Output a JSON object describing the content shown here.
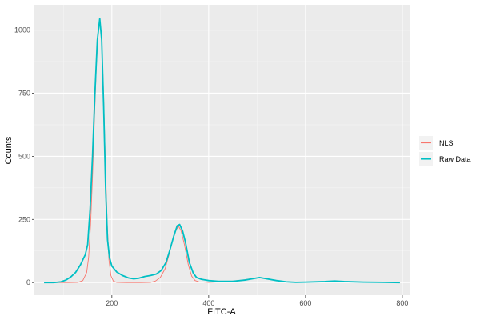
{
  "chart_data": {
    "type": "line",
    "title": "",
    "xlabel": "FITC-A",
    "ylabel": "Counts",
    "xlim": [
      40,
      815
    ],
    "ylim": [
      -50,
      1100
    ],
    "x_ticks": [
      200,
      400,
      600,
      800
    ],
    "y_ticks": [
      0,
      250,
      500,
      750,
      1000
    ],
    "grid": true,
    "legend": "right",
    "series": [
      {
        "name": "NLS",
        "color": "#f8766d",
        "line_width": 0.9,
        "points": [
          [
            60,
            0
          ],
          [
            90,
            0
          ],
          [
            110,
            0
          ],
          [
            130,
            1
          ],
          [
            140,
            8
          ],
          [
            148,
            40
          ],
          [
            152,
            100
          ],
          [
            156,
            230
          ],
          [
            160,
            420
          ],
          [
            164,
            650
          ],
          [
            168,
            860
          ],
          [
            172,
            1000
          ],
          [
            175,
            1040
          ],
          [
            178,
            990
          ],
          [
            182,
            800
          ],
          [
            186,
            520
          ],
          [
            190,
            250
          ],
          [
            194,
            90
          ],
          [
            198,
            28
          ],
          [
            203,
            6
          ],
          [
            210,
            1
          ],
          [
            230,
            0
          ],
          [
            260,
            0
          ],
          [
            280,
            1
          ],
          [
            290,
            6
          ],
          [
            300,
            20
          ],
          [
            310,
            55
          ],
          [
            318,
            110
          ],
          [
            325,
            165
          ],
          [
            333,
            210
          ],
          [
            338,
            222
          ],
          [
            343,
            205
          ],
          [
            350,
            150
          ],
          [
            358,
            70
          ],
          [
            365,
            25
          ],
          [
            372,
            8
          ],
          [
            380,
            3
          ],
          [
            400,
            1
          ],
          [
            440,
            4
          ],
          [
            470,
            10
          ],
          [
            490,
            16
          ],
          [
            505,
            20
          ],
          [
            520,
            15
          ],
          [
            540,
            8
          ],
          [
            560,
            3
          ],
          [
            580,
            1
          ],
          [
            610,
            2
          ],
          [
            640,
            4
          ],
          [
            660,
            6
          ],
          [
            680,
            4
          ],
          [
            720,
            2
          ],
          [
            760,
            1
          ],
          [
            795,
            0
          ]
        ]
      },
      {
        "name": "Raw Data",
        "color": "#00bfc4",
        "line_width": 1.8,
        "points": [
          [
            60,
            0
          ],
          [
            80,
            0
          ],
          [
            95,
            3
          ],
          [
            105,
            10
          ],
          [
            115,
            22
          ],
          [
            125,
            40
          ],
          [
            135,
            70
          ],
          [
            145,
            110
          ],
          [
            150,
            150
          ],
          [
            155,
            290
          ],
          [
            160,
            500
          ],
          [
            165,
            750
          ],
          [
            170,
            960
          ],
          [
            175,
            1045
          ],
          [
            179,
            960
          ],
          [
            183,
            700
          ],
          [
            187,
            380
          ],
          [
            191,
            170
          ],
          [
            195,
            100
          ],
          [
            200,
            65
          ],
          [
            210,
            42
          ],
          [
            222,
            28
          ],
          [
            235,
            18
          ],
          [
            245,
            15
          ],
          [
            255,
            17
          ],
          [
            268,
            24
          ],
          [
            280,
            28
          ],
          [
            292,
            34
          ],
          [
            302,
            48
          ],
          [
            312,
            80
          ],
          [
            320,
            130
          ],
          [
            328,
            185
          ],
          [
            335,
            225
          ],
          [
            340,
            230
          ],
          [
            346,
            205
          ],
          [
            352,
            160
          ],
          [
            360,
            80
          ],
          [
            368,
            38
          ],
          [
            375,
            20
          ],
          [
            385,
            13
          ],
          [
            400,
            8
          ],
          [
            420,
            5
          ],
          [
            450,
            5
          ],
          [
            475,
            10
          ],
          [
            490,
            15
          ],
          [
            505,
            20
          ],
          [
            520,
            15
          ],
          [
            540,
            8
          ],
          [
            560,
            3
          ],
          [
            580,
            1
          ],
          [
            600,
            2
          ],
          [
            640,
            4
          ],
          [
            660,
            6
          ],
          [
            680,
            4
          ],
          [
            720,
            2
          ],
          [
            760,
            1
          ],
          [
            795,
            0
          ]
        ]
      }
    ]
  }
}
